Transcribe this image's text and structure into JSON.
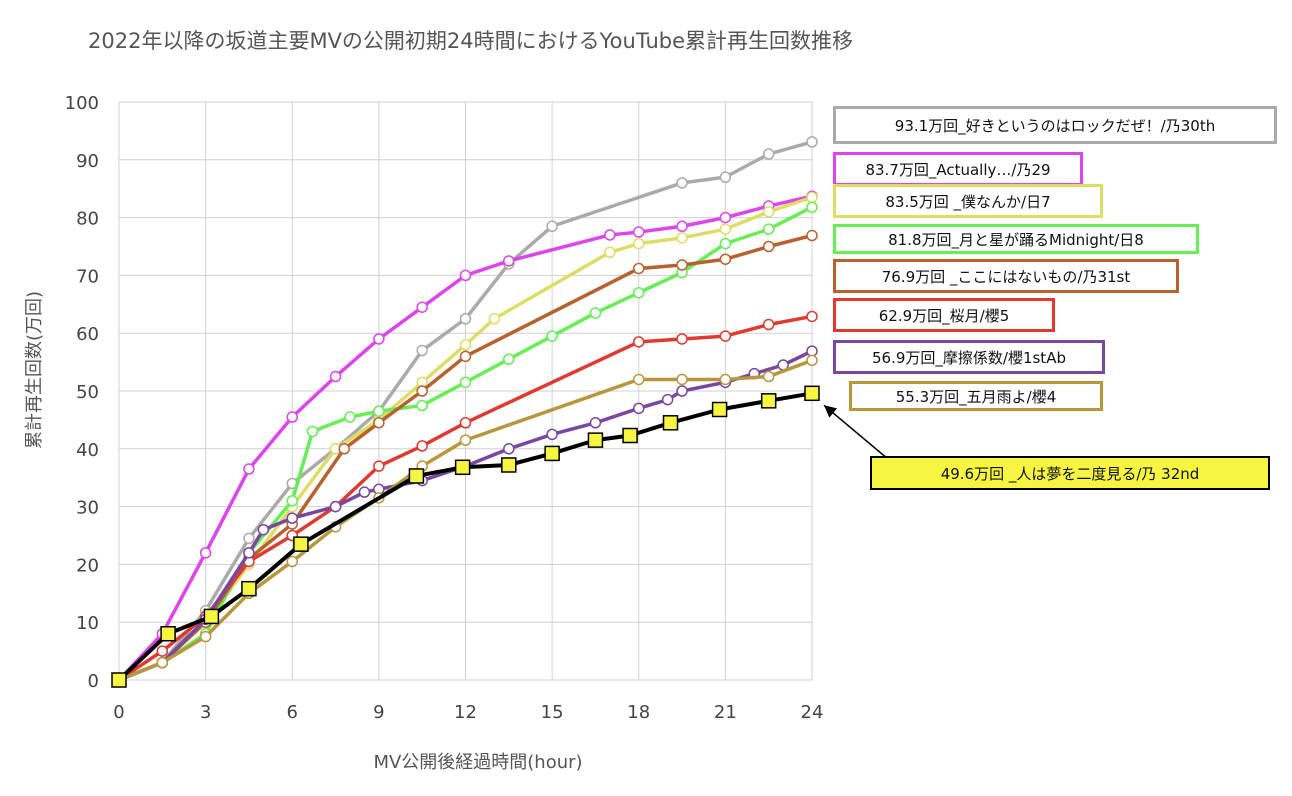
{
  "chart_data": {
    "type": "line",
    "title": "2022年以降の坂道主要MVの公開初期24時間におけるYouTube累計再生回数推移",
    "xlabel": "MV公開後経過時間(hour)",
    "ylabel": "累計再生回数(万回)",
    "xlim": [
      0,
      24
    ],
    "ylim": [
      0,
      100
    ],
    "x_ticks": [
      "0",
      "3",
      "6",
      "9",
      "12",
      "15",
      "18",
      "21",
      "24"
    ],
    "y_ticks": [
      "0",
      "10",
      "20",
      "30",
      "40",
      "50",
      "60",
      "70",
      "80",
      "90",
      "100"
    ],
    "grid": true,
    "legend_position": "right",
    "series": [
      {
        "name": "93.1万回_好きというのはロックだぜ！/乃30th",
        "color": "#aaaaaa",
        "marker": "circle",
        "points": [
          [
            0,
            0
          ],
          [
            1.5,
            3
          ],
          [
            3,
            12
          ],
          [
            4.5,
            24.5
          ],
          [
            6,
            34
          ],
          [
            7.5,
            40
          ],
          [
            9,
            46.5
          ],
          [
            10.5,
            57
          ],
          [
            12,
            62.5
          ],
          [
            13.5,
            72
          ],
          [
            15,
            78.5
          ],
          [
            19.5,
            86
          ],
          [
            21,
            87
          ],
          [
            22.5,
            91
          ],
          [
            24,
            93.1
          ]
        ]
      },
      {
        "name": "83.7万回_Actually…/乃29",
        "color": "#dd44ee",
        "marker": "circle",
        "points": [
          [
            0,
            0
          ],
          [
            1.5,
            8
          ],
          [
            3,
            22
          ],
          [
            4.5,
            36.5
          ],
          [
            6,
            45.5
          ],
          [
            7.5,
            52.5
          ],
          [
            9,
            59
          ],
          [
            10.5,
            64.5
          ],
          [
            12,
            70
          ],
          [
            13.5,
            72.5
          ],
          [
            17,
            77
          ],
          [
            18,
            77.5
          ],
          [
            19.5,
            78.5
          ],
          [
            21,
            80
          ],
          [
            22.5,
            82
          ],
          [
            24,
            83.7
          ]
        ]
      },
      {
        "name": "83.5万回 _僕なんか/日7",
        "color": "#dddd66",
        "marker": "circle",
        "points": [
          [
            0,
            0
          ],
          [
            1.5,
            3
          ],
          [
            3,
            10
          ],
          [
            4.5,
            20
          ],
          [
            6,
            30
          ],
          [
            7.5,
            40
          ],
          [
            9,
            45
          ],
          [
            10.5,
            51.5
          ],
          [
            12,
            58
          ],
          [
            13,
            62.5
          ],
          [
            17,
            74
          ],
          [
            18,
            75.5
          ],
          [
            19.5,
            76.5
          ],
          [
            21,
            78
          ],
          [
            22.5,
            81
          ],
          [
            24,
            83.5
          ]
        ]
      },
      {
        "name": "81.8万回_月と星が踊るMidnight/日8",
        "color": "#66ee55",
        "marker": "circle",
        "points": [
          [
            0,
            0
          ],
          [
            1.5,
            3
          ],
          [
            3,
            8
          ],
          [
            4.5,
            22
          ],
          [
            6,
            31
          ],
          [
            6.7,
            43
          ],
          [
            8,
            45.5
          ],
          [
            9,
            46.5
          ],
          [
            10.5,
            47.5
          ],
          [
            12,
            51.5
          ],
          [
            13.5,
            55.5
          ],
          [
            15,
            59.5
          ],
          [
            16.5,
            63.5
          ],
          [
            18,
            67
          ],
          [
            19.5,
            70.5
          ],
          [
            21,
            75.5
          ],
          [
            22.5,
            78
          ],
          [
            24,
            81.8
          ]
        ]
      },
      {
        "name": "76.9万回 _ここにはないもの/乃31st",
        "color": "#b8612d",
        "marker": "circle",
        "points": [
          [
            0,
            0
          ],
          [
            1.5,
            3
          ],
          [
            3,
            10
          ],
          [
            4.5,
            21
          ],
          [
            6,
            27
          ],
          [
            7.8,
            40
          ],
          [
            9,
            44.5
          ],
          [
            10.5,
            50
          ],
          [
            12,
            56
          ],
          [
            18,
            71.2
          ],
          [
            19.5,
            71.8
          ],
          [
            21,
            72.8
          ],
          [
            22.5,
            75
          ],
          [
            24,
            76.9
          ]
        ]
      },
      {
        "name": "62.9万回_桜月/櫻5",
        "color": "#e03a30",
        "marker": "circle",
        "points": [
          [
            0,
            0
          ],
          [
            1.5,
            5
          ],
          [
            3,
            11
          ],
          [
            4.5,
            20.5
          ],
          [
            6,
            25
          ],
          [
            7.5,
            30
          ],
          [
            9,
            37
          ],
          [
            10.5,
            40.5
          ],
          [
            12,
            44.5
          ],
          [
            18,
            58.5
          ],
          [
            19.5,
            59
          ],
          [
            21,
            59.5
          ],
          [
            22.5,
            61.5
          ],
          [
            24,
            62.9
          ]
        ]
      },
      {
        "name": "56.9万回_摩擦係数/櫻1stAb",
        "color": "#7a47a0",
        "marker": "circle",
        "points": [
          [
            0,
            0
          ],
          [
            1.5,
            3
          ],
          [
            3,
            10.5
          ],
          [
            4.5,
            22
          ],
          [
            5,
            26
          ],
          [
            6,
            28
          ],
          [
            7.5,
            30
          ],
          [
            8.5,
            32.5
          ],
          [
            9,
            33
          ],
          [
            10.5,
            34.5
          ],
          [
            12,
            37
          ],
          [
            13.5,
            40
          ],
          [
            15,
            42.5
          ],
          [
            16.5,
            44.5
          ],
          [
            18,
            47
          ],
          [
            19,
            48.5
          ],
          [
            19.5,
            50
          ],
          [
            21,
            51.5
          ],
          [
            22,
            53
          ],
          [
            23,
            54.5
          ],
          [
            24,
            56.9
          ]
        ]
      },
      {
        "name": "55.3万回_五月雨よ/櫻4",
        "color": "#b8963c",
        "marker": "circle",
        "points": [
          [
            0,
            0
          ],
          [
            1.5,
            3
          ],
          [
            3,
            7.5
          ],
          [
            4.5,
            15
          ],
          [
            6,
            20.5
          ],
          [
            7.5,
            26.5
          ],
          [
            9,
            31.5
          ],
          [
            10.5,
            37
          ],
          [
            12,
            41.5
          ],
          [
            18,
            52
          ],
          [
            19.5,
            52
          ],
          [
            21,
            52
          ],
          [
            22.5,
            52.5
          ],
          [
            24,
            55.3
          ]
        ]
      },
      {
        "name": "49.6万回 _人は夢を二度見る/乃 32nd",
        "color": "#000000",
        "marker": "square",
        "marker_fill": "#f5f542",
        "points": [
          [
            0,
            0
          ],
          [
            1.7,
            8
          ],
          [
            3.2,
            11
          ],
          [
            4.5,
            15.8
          ],
          [
            6.3,
            23.5
          ],
          [
            10.3,
            35.3
          ],
          [
            11.9,
            36.8
          ],
          [
            13.5,
            37.2
          ],
          [
            15,
            39.2
          ],
          [
            16.5,
            41.5
          ],
          [
            17.7,
            42.3
          ],
          [
            19.1,
            44.5
          ],
          [
            20.8,
            46.8
          ],
          [
            22.5,
            48.3
          ],
          [
            24,
            49.6
          ]
        ]
      }
    ]
  }
}
